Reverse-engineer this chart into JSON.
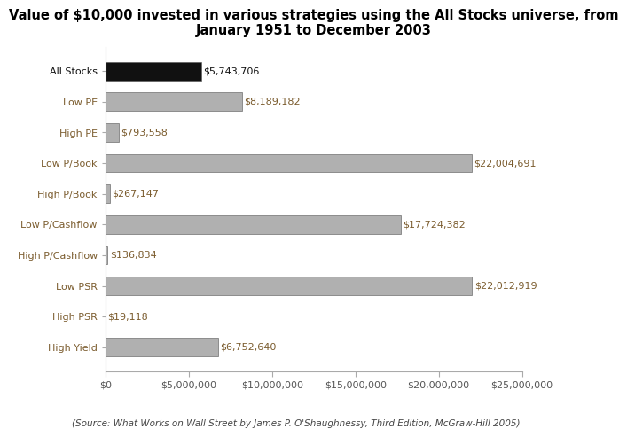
{
  "title": "Value of $10,000 invested in various strategies using the All Stocks universe, from\nJanuary 1951 to December 2003",
  "categories": [
    "High Yield",
    "High PSR",
    "Low PSR",
    "High P/Cashflow",
    "Low P/Cashflow",
    "High P/Book",
    "Low P/Book",
    "High PE",
    "Low PE",
    "All Stocks"
  ],
  "values": [
    6752640,
    19118,
    22012919,
    136834,
    17724382,
    267147,
    22004691,
    793558,
    8189182,
    5743706
  ],
  "labels": [
    "$6,752,640",
    "$19,118",
    "$22,012,919",
    "$136,834",
    "$17,724,382",
    "$267,147",
    "$22,004,691",
    "$793,558",
    "$8,189,182",
    "$5,743,706"
  ],
  "bar_colors": [
    "#b0b0b0",
    "#b0b0b0",
    "#b0b0b0",
    "#b0b0b0",
    "#b0b0b0",
    "#b0b0b0",
    "#b0b0b0",
    "#b0b0b0",
    "#b0b0b0",
    "#111111"
  ],
  "ytick_colors": [
    "#7b5c2e",
    "#7b5c2e",
    "#7b5c2e",
    "#7b5c2e",
    "#7b5c2e",
    "#7b5c2e",
    "#7b5c2e",
    "#7b5c2e",
    "#7b5c2e",
    "#111111"
  ],
  "label_colors": [
    "#7b5c2e",
    "#7b5c2e",
    "#7b5c2e",
    "#7b5c2e",
    "#7b5c2e",
    "#7b5c2e",
    "#7b5c2e",
    "#7b5c2e",
    "#7b5c2e",
    "#111111"
  ],
  "xlim": [
    0,
    25000000
  ],
  "xticks": [
    0,
    5000000,
    10000000,
    15000000,
    20000000,
    25000000
  ],
  "xtick_labels": [
    "$0",
    "$5,000,000",
    "$10,000,000",
    "$15,000,000",
    "$20,000,000",
    "$25,000,000"
  ],
  "footnote": "(Source: What Works on Wall Street by James P. O'Shaughnessy, Third Edition, McGraw-Hill 2005)",
  "bg_color": "#ffffff",
  "title_fontsize": 10.5,
  "label_fontsize": 8,
  "ytick_fontsize": 8,
  "xtick_fontsize": 8,
  "footnote_fontsize": 7.5,
  "bar_height": 0.6
}
